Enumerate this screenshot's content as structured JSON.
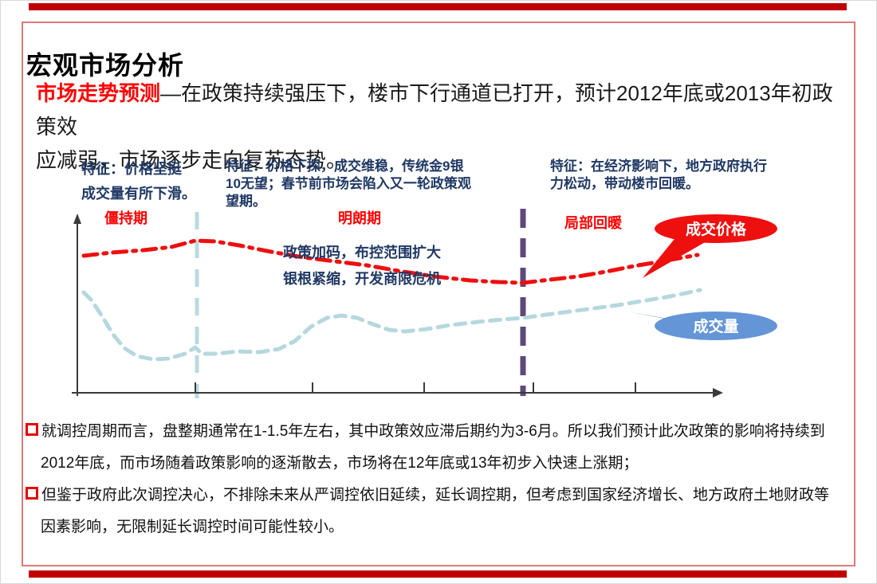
{
  "slide": {
    "title": "宏观市场分析"
  },
  "intro": {
    "lead": "市场走势预测",
    "body": "—在政策持续强压下，楼市下行通道已打开，预计2012年底或2013年初政策效\n应减弱，市场逐步走向复苏态势。"
  },
  "features": {
    "stalemate": "特征：价格坚挺\n成交量有所下滑。",
    "clarity": "特征：价格下探，成交维稳，传统金9银\n10无望；春节前市场会陷入又一轮政策观\n望期。",
    "recovery": "特征：在经济影响下，地方政府执行\n力松动，带动楼市回暖。"
  },
  "chart_data": {
    "type": "line",
    "description": "概念趋势图：政策调控下的楼市阶段走势（无数值坐标）",
    "phases": [
      {
        "label": "僵持期"
      },
      {
        "label": "明朗期"
      },
      {
        "label": "局部回暖"
      }
    ],
    "annotation": "政策加码，布控范围扩大\n银根紧缩，开发商限危机",
    "series": [
      {
        "name": "成交价格",
        "color": "#ee0f0f",
        "style": "dash-dot",
        "points": [
          [
            105,
            321
          ],
          [
            140,
            317
          ],
          [
            180,
            314
          ],
          [
            215,
            310
          ],
          [
            245,
            302
          ],
          [
            270,
            303
          ],
          [
            300,
            308
          ],
          [
            340,
            316
          ],
          [
            380,
            323
          ],
          [
            420,
            328
          ],
          [
            460,
            333
          ],
          [
            500,
            340
          ],
          [
            545,
            347
          ],
          [
            590,
            352
          ],
          [
            625,
            354
          ],
          [
            656,
            355
          ],
          [
            690,
            351
          ],
          [
            725,
            347
          ],
          [
            760,
            341
          ],
          [
            795,
            334
          ],
          [
            830,
            328
          ],
          [
            858,
            323
          ],
          [
            875,
            320
          ]
        ]
      },
      {
        "name": "成交量",
        "color": "#b5d8de",
        "style": "dashed",
        "points": [
          [
            105,
            367
          ],
          [
            115,
            377
          ],
          [
            128,
            397
          ],
          [
            142,
            420
          ],
          [
            156,
            437
          ],
          [
            172,
            447
          ],
          [
            192,
            451
          ],
          [
            212,
            450
          ],
          [
            232,
            444
          ],
          [
            245,
            436
          ],
          [
            253,
            444
          ],
          [
            272,
            444
          ],
          [
            298,
            441
          ],
          [
            325,
            442
          ],
          [
            350,
            438
          ],
          [
            370,
            428
          ],
          [
            390,
            410
          ],
          [
            410,
            399
          ],
          [
            428,
            396
          ],
          [
            448,
            399
          ],
          [
            468,
            407
          ],
          [
            488,
            414
          ],
          [
            508,
            416
          ],
          [
            535,
            413
          ],
          [
            565,
            408
          ],
          [
            600,
            404
          ],
          [
            630,
            401
          ],
          [
            656,
            399
          ],
          [
            685,
            395
          ],
          [
            715,
            391
          ],
          [
            745,
            387
          ],
          [
            775,
            383
          ],
          [
            805,
            378
          ],
          [
            835,
            373
          ],
          [
            860,
            368
          ],
          [
            878,
            364
          ]
        ]
      }
    ],
    "callouts": {
      "price": {
        "label": "成交价格",
        "color": "#ee0f0f"
      },
      "volume": {
        "label": "成交量",
        "color": "#6495d6"
      }
    },
    "dividers": [
      {
        "name": "teal-divider",
        "color": "#b9dae0"
      },
      {
        "name": "purple-divider",
        "color": "#5f497a"
      }
    ]
  },
  "notes": {
    "items": [
      "就调控周期而言，盘整期通常在1-1.5年左右，其中政策效应滞后期约为3-6月。所以我们预计此次政策的影响将持续到\n2012年底，而市场随着政策影响的逐渐散去，市场将在12年底或13年初步入快速上涨期；",
      "但鉴于政府此次调控决心，不排除未来从严调控依旧延续，延长调控期，但考虑到国家经济增长、地方政府土地财政等\n因素影响，无限制延长调控时间可能性较小。"
    ]
  },
  "colors": {
    "accent_bar": "#c00000",
    "frame_border": "#dd7a7a",
    "dark_navy_text": "#1f3864",
    "highlight_red": "#ff0000"
  }
}
